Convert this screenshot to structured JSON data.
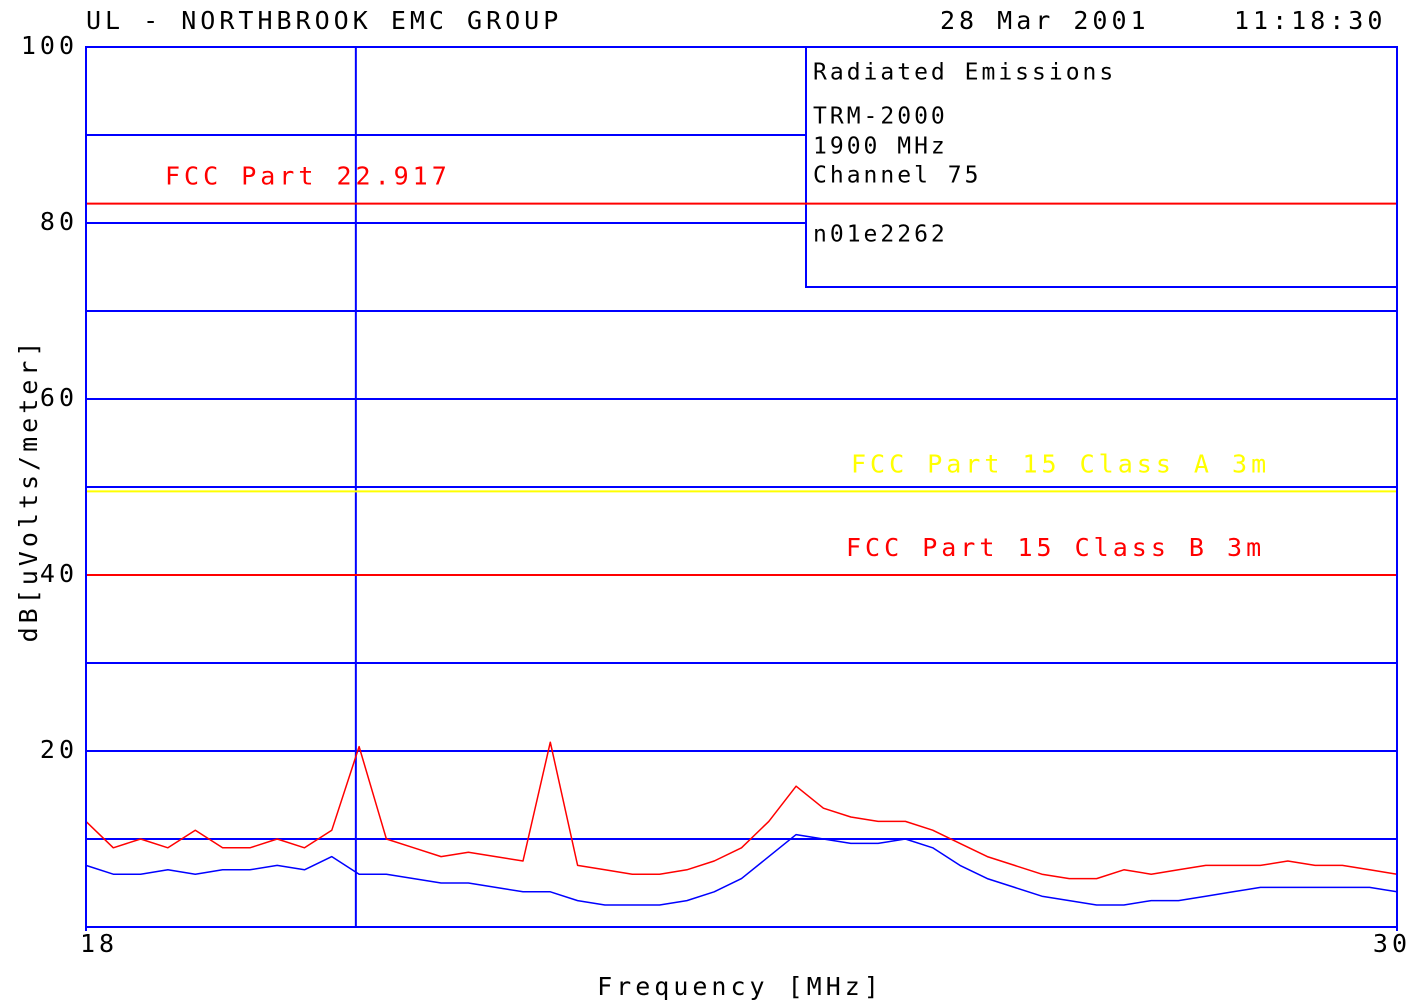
{
  "chart_data": {
    "type": "line",
    "title": "UL - NORTHBROOK EMC GROUP",
    "date": "28 Mar 2001",
    "time": "11:18:30",
    "x_label": "Frequency [MHz]",
    "y_label": "dB[uVolts/meter]",
    "xlim": [
      18,
      30
    ],
    "ylim": [
      0,
      100
    ],
    "xticks": [
      18,
      30
    ],
    "yticks": [
      20,
      40,
      60,
      80,
      100
    ],
    "minor_yticks": [
      10,
      30,
      50,
      70,
      90
    ],
    "vlines": [
      20.47
    ],
    "grid": true,
    "grid_color": "#0000ff",
    "info_box": [
      "Radiated Emissions",
      "TRM-2000",
      "1900 MHz",
      "Channel 75",
      "n01e2262"
    ],
    "limits": [
      {
        "name": "FCC Part 22.917",
        "value": 82.2,
        "color": "#ff0000"
      },
      {
        "name": "FCC Part 15 Class A 3m",
        "value": 49.5,
        "color": "#ffff00"
      },
      {
        "name": "FCC Part 15 Class B 3m",
        "value": 40,
        "color": "#ff0000"
      }
    ],
    "x": [
      18,
      18.25,
      18.5,
      18.75,
      19,
      19.25,
      19.5,
      19.75,
      20,
      20.25,
      20.5,
      20.75,
      21,
      21.25,
      21.5,
      21.75,
      22,
      22.25,
      22.5,
      22.75,
      23,
      23.25,
      23.5,
      23.75,
      24,
      24.25,
      24.5,
      24.75,
      25,
      25.25,
      25.5,
      25.75,
      26,
      26.25,
      26.5,
      26.75,
      27,
      27.25,
      27.5,
      27.75,
      28,
      28.25,
      28.5,
      28.75,
      29,
      29.25,
      29.5,
      29.75,
      30
    ],
    "series": [
      {
        "color": "#ff0000",
        "values": [
          12,
          9,
          10,
          9,
          11,
          9,
          9,
          10,
          9,
          11,
          20.5,
          10,
          9,
          8,
          8.5,
          8,
          7.5,
          21,
          7,
          6.5,
          6,
          6,
          6.5,
          7.5,
          9,
          12,
          16,
          13.5,
          12.5,
          12,
          12,
          11,
          9.5,
          8,
          7,
          6,
          5.5,
          5.5,
          6.5,
          6,
          6.5,
          7,
          7,
          7,
          7.5,
          7,
          7,
          6.5,
          6
        ]
      },
      {
        "color": "#0000ff",
        "values": [
          7,
          6,
          6,
          6.5,
          6,
          6.5,
          6.5,
          7,
          6.5,
          8,
          6,
          6,
          5.5,
          5,
          5,
          4.5,
          4,
          4,
          3,
          2.5,
          2.5,
          2.5,
          3,
          4,
          5.5,
          8,
          10.5,
          10,
          9.5,
          9.5,
          10,
          9,
          7,
          5.5,
          4.5,
          3.5,
          3,
          2.5,
          2.5,
          3,
          3,
          3.5,
          4,
          4.5,
          4.5,
          4.5,
          4.5,
          4.5,
          4
        ]
      }
    ]
  }
}
